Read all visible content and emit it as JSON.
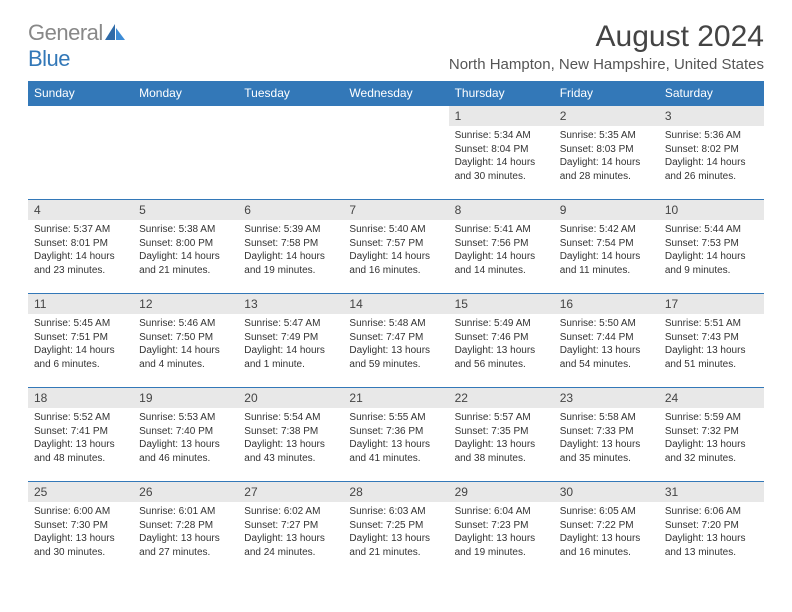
{
  "logo": {
    "part1": "General",
    "part2": "Blue"
  },
  "title": "August 2024",
  "location": "North Hampton, New Hampshire, United States",
  "colors": {
    "header_bg": "#3378b8",
    "header_text": "#ffffff",
    "daynum_bg": "#e8e8e8",
    "border": "#3378b8",
    "text": "#333333"
  },
  "day_headers": [
    "Sunday",
    "Monday",
    "Tuesday",
    "Wednesday",
    "Thursday",
    "Friday",
    "Saturday"
  ],
  "weeks": [
    [
      {
        "n": "",
        "lines": []
      },
      {
        "n": "",
        "lines": []
      },
      {
        "n": "",
        "lines": []
      },
      {
        "n": "",
        "lines": []
      },
      {
        "n": "1",
        "lines": [
          "Sunrise: 5:34 AM",
          "Sunset: 8:04 PM",
          "Daylight: 14 hours",
          "and 30 minutes."
        ]
      },
      {
        "n": "2",
        "lines": [
          "Sunrise: 5:35 AM",
          "Sunset: 8:03 PM",
          "Daylight: 14 hours",
          "and 28 minutes."
        ]
      },
      {
        "n": "3",
        "lines": [
          "Sunrise: 5:36 AM",
          "Sunset: 8:02 PM",
          "Daylight: 14 hours",
          "and 26 minutes."
        ]
      }
    ],
    [
      {
        "n": "4",
        "lines": [
          "Sunrise: 5:37 AM",
          "Sunset: 8:01 PM",
          "Daylight: 14 hours",
          "and 23 minutes."
        ]
      },
      {
        "n": "5",
        "lines": [
          "Sunrise: 5:38 AM",
          "Sunset: 8:00 PM",
          "Daylight: 14 hours",
          "and 21 minutes."
        ]
      },
      {
        "n": "6",
        "lines": [
          "Sunrise: 5:39 AM",
          "Sunset: 7:58 PM",
          "Daylight: 14 hours",
          "and 19 minutes."
        ]
      },
      {
        "n": "7",
        "lines": [
          "Sunrise: 5:40 AM",
          "Sunset: 7:57 PM",
          "Daylight: 14 hours",
          "and 16 minutes."
        ]
      },
      {
        "n": "8",
        "lines": [
          "Sunrise: 5:41 AM",
          "Sunset: 7:56 PM",
          "Daylight: 14 hours",
          "and 14 minutes."
        ]
      },
      {
        "n": "9",
        "lines": [
          "Sunrise: 5:42 AM",
          "Sunset: 7:54 PM",
          "Daylight: 14 hours",
          "and 11 minutes."
        ]
      },
      {
        "n": "10",
        "lines": [
          "Sunrise: 5:44 AM",
          "Sunset: 7:53 PM",
          "Daylight: 14 hours",
          "and 9 minutes."
        ]
      }
    ],
    [
      {
        "n": "11",
        "lines": [
          "Sunrise: 5:45 AM",
          "Sunset: 7:51 PM",
          "Daylight: 14 hours",
          "and 6 minutes."
        ]
      },
      {
        "n": "12",
        "lines": [
          "Sunrise: 5:46 AM",
          "Sunset: 7:50 PM",
          "Daylight: 14 hours",
          "and 4 minutes."
        ]
      },
      {
        "n": "13",
        "lines": [
          "Sunrise: 5:47 AM",
          "Sunset: 7:49 PM",
          "Daylight: 14 hours",
          "and 1 minute."
        ]
      },
      {
        "n": "14",
        "lines": [
          "Sunrise: 5:48 AM",
          "Sunset: 7:47 PM",
          "Daylight: 13 hours",
          "and 59 minutes."
        ]
      },
      {
        "n": "15",
        "lines": [
          "Sunrise: 5:49 AM",
          "Sunset: 7:46 PM",
          "Daylight: 13 hours",
          "and 56 minutes."
        ]
      },
      {
        "n": "16",
        "lines": [
          "Sunrise: 5:50 AM",
          "Sunset: 7:44 PM",
          "Daylight: 13 hours",
          "and 54 minutes."
        ]
      },
      {
        "n": "17",
        "lines": [
          "Sunrise: 5:51 AM",
          "Sunset: 7:43 PM",
          "Daylight: 13 hours",
          "and 51 minutes."
        ]
      }
    ],
    [
      {
        "n": "18",
        "lines": [
          "Sunrise: 5:52 AM",
          "Sunset: 7:41 PM",
          "Daylight: 13 hours",
          "and 48 minutes."
        ]
      },
      {
        "n": "19",
        "lines": [
          "Sunrise: 5:53 AM",
          "Sunset: 7:40 PM",
          "Daylight: 13 hours",
          "and 46 minutes."
        ]
      },
      {
        "n": "20",
        "lines": [
          "Sunrise: 5:54 AM",
          "Sunset: 7:38 PM",
          "Daylight: 13 hours",
          "and 43 minutes."
        ]
      },
      {
        "n": "21",
        "lines": [
          "Sunrise: 5:55 AM",
          "Sunset: 7:36 PM",
          "Daylight: 13 hours",
          "and 41 minutes."
        ]
      },
      {
        "n": "22",
        "lines": [
          "Sunrise: 5:57 AM",
          "Sunset: 7:35 PM",
          "Daylight: 13 hours",
          "and 38 minutes."
        ]
      },
      {
        "n": "23",
        "lines": [
          "Sunrise: 5:58 AM",
          "Sunset: 7:33 PM",
          "Daylight: 13 hours",
          "and 35 minutes."
        ]
      },
      {
        "n": "24",
        "lines": [
          "Sunrise: 5:59 AM",
          "Sunset: 7:32 PM",
          "Daylight: 13 hours",
          "and 32 minutes."
        ]
      }
    ],
    [
      {
        "n": "25",
        "lines": [
          "Sunrise: 6:00 AM",
          "Sunset: 7:30 PM",
          "Daylight: 13 hours",
          "and 30 minutes."
        ]
      },
      {
        "n": "26",
        "lines": [
          "Sunrise: 6:01 AM",
          "Sunset: 7:28 PM",
          "Daylight: 13 hours",
          "and 27 minutes."
        ]
      },
      {
        "n": "27",
        "lines": [
          "Sunrise: 6:02 AM",
          "Sunset: 7:27 PM",
          "Daylight: 13 hours",
          "and 24 minutes."
        ]
      },
      {
        "n": "28",
        "lines": [
          "Sunrise: 6:03 AM",
          "Sunset: 7:25 PM",
          "Daylight: 13 hours",
          "and 21 minutes."
        ]
      },
      {
        "n": "29",
        "lines": [
          "Sunrise: 6:04 AM",
          "Sunset: 7:23 PM",
          "Daylight: 13 hours",
          "and 19 minutes."
        ]
      },
      {
        "n": "30",
        "lines": [
          "Sunrise: 6:05 AM",
          "Sunset: 7:22 PM",
          "Daylight: 13 hours",
          "and 16 minutes."
        ]
      },
      {
        "n": "31",
        "lines": [
          "Sunrise: 6:06 AM",
          "Sunset: 7:20 PM",
          "Daylight: 13 hours",
          "and 13 minutes."
        ]
      }
    ]
  ]
}
